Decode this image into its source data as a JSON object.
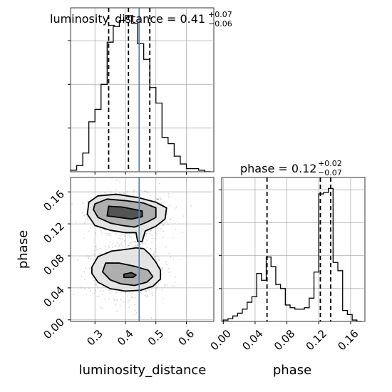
{
  "chart_data": {
    "type": "corner",
    "parameters": [
      "luminosity_distance",
      "phase"
    ],
    "truth": {
      "luminosity_distance": 0.445,
      "phase": null
    },
    "truth_color": "#4682b4",
    "panels": [
      {
        "id": "luminosity_distance_marginal",
        "type": "histogram",
        "title": {
          "prefix": "luminosity_distance = ",
          "value": "0.41",
          "plus": "+0.07",
          "minus": "−0.06"
        },
        "xlim": [
          0.22,
          0.69
        ],
        "xticks": [
          0.3,
          0.4,
          0.5,
          0.6
        ],
        "ylim": [
          0,
          1.05
        ],
        "quantiles": [
          0.345,
          0.41,
          0.48
        ],
        "bins": [
          [
            0.22,
            0.01
          ],
          [
            0.24,
            0.04
          ],
          [
            0.26,
            0.12
          ],
          [
            0.28,
            0.32
          ],
          [
            0.3,
            0.4
          ],
          [
            0.32,
            0.56
          ],
          [
            0.34,
            0.83
          ],
          [
            0.36,
            0.93
          ],
          [
            0.38,
            0.97
          ],
          [
            0.4,
            1.0
          ],
          [
            0.42,
            0.95
          ],
          [
            0.44,
            0.82
          ],
          [
            0.46,
            0.72
          ],
          [
            0.48,
            0.54
          ],
          [
            0.5,
            0.44
          ],
          [
            0.52,
            0.22
          ],
          [
            0.54,
            0.18
          ],
          [
            0.56,
            0.1
          ],
          [
            0.58,
            0.05
          ],
          [
            0.6,
            0.02
          ],
          [
            0.62,
            0.02
          ],
          [
            0.64,
            0.01
          ],
          [
            0.66,
            0.0
          ]
        ]
      },
      {
        "id": "phase_marginal",
        "type": "histogram",
        "title": {
          "prefix": "phase = ",
          "value": "0.12",
          "plus": "+0.02",
          "minus": "−0.07"
        },
        "xlim": [
          -0.002,
          0.178
        ],
        "xticks": [
          0.0,
          0.04,
          0.08,
          0.12,
          0.16
        ],
        "xtick_labels": [
          "0.00",
          "0.04",
          "0.08",
          "0.12",
          "0.16"
        ],
        "xlabel": "phase",
        "ylim": [
          0,
          1.05
        ],
        "quantiles": [
          0.055,
          0.122,
          0.135
        ],
        "bins": [
          [
            0.0,
            0.01
          ],
          [
            0.006,
            0.02
          ],
          [
            0.012,
            0.04
          ],
          [
            0.018,
            0.06
          ],
          [
            0.024,
            0.09
          ],
          [
            0.03,
            0.14
          ],
          [
            0.036,
            0.18
          ],
          [
            0.042,
            0.35
          ],
          [
            0.048,
            0.3
          ],
          [
            0.054,
            0.47
          ],
          [
            0.06,
            0.4
          ],
          [
            0.066,
            0.27
          ],
          [
            0.072,
            0.24
          ],
          [
            0.078,
            0.12
          ],
          [
            0.084,
            0.1
          ],
          [
            0.09,
            0.09
          ],
          [
            0.096,
            0.09
          ],
          [
            0.102,
            0.1
          ],
          [
            0.108,
            0.17
          ],
          [
            0.114,
            0.36
          ],
          [
            0.12,
            0.93
          ],
          [
            0.126,
            0.94
          ],
          [
            0.132,
            0.97
          ],
          [
            0.138,
            0.43
          ],
          [
            0.144,
            0.37
          ],
          [
            0.15,
            0.08
          ],
          [
            0.156,
            0.05
          ],
          [
            0.162,
            0.01
          ],
          [
            0.168,
            0.0
          ]
        ]
      },
      {
        "id": "joint_luminosity_distance_phase",
        "type": "2d_contour",
        "xlim": [
          0.22,
          0.69
        ],
        "ylim": [
          -0.002,
          0.178
        ],
        "xticks": [
          0.3,
          0.4,
          0.5,
          0.6
        ],
        "yticks": [
          0.0,
          0.04,
          0.08,
          0.12,
          0.16
        ],
        "ytick_labels": [
          "0.00",
          "0.04",
          "0.08",
          "0.12",
          "0.16"
        ],
        "xlabel": "luminosity_distance",
        "ylabel": "phase",
        "contours": [
          {
            "level": 0.393,
            "points": [
              [
                0.345,
                0.142
              ],
              [
                0.39,
                0.141
              ],
              [
                0.43,
                0.138
              ],
              [
                0.455,
                0.136
              ],
              [
                0.455,
                0.129
              ],
              [
                0.42,
                0.126
              ],
              [
                0.38,
                0.128
              ],
              [
                0.34,
                0.13
              ]
            ]
          },
          {
            "level": 0.865,
            "points": [
              [
                0.3,
                0.145
              ],
              [
                0.34,
                0.151
              ],
              [
                0.4,
                0.149
              ],
              [
                0.46,
                0.146
              ],
              [
                0.5,
                0.14
              ],
              [
                0.5,
                0.128
              ],
              [
                0.47,
                0.122
              ],
              [
                0.43,
                0.116
              ],
              [
                0.39,
                0.118
              ],
              [
                0.35,
                0.121
              ],
              [
                0.31,
                0.128
              ],
              [
                0.295,
                0.138
              ]
            ]
          },
          {
            "level": 0.989,
            "points": [
              [
                0.28,
                0.147
              ],
              [
                0.31,
                0.155
              ],
              [
                0.37,
                0.157
              ],
              [
                0.44,
                0.153
              ],
              [
                0.5,
                0.147
              ],
              [
                0.535,
                0.14
              ],
              [
                0.53,
                0.126
              ],
              [
                0.5,
                0.117
              ],
              [
                0.465,
                0.111
              ],
              [
                0.455,
                0.098
              ],
              [
                0.44,
                0.098
              ],
              [
                0.435,
                0.109
              ],
              [
                0.4,
                0.109
              ],
              [
                0.35,
                0.112
              ],
              [
                0.3,
                0.118
              ],
              [
                0.275,
                0.132
              ]
            ]
          },
          {
            "level": 0.393,
            "points": [
              [
                0.395,
                0.057
              ],
              [
                0.42,
                0.059
              ],
              [
                0.435,
                0.056
              ],
              [
                0.425,
                0.053
              ],
              [
                0.395,
                0.053
              ]
            ]
          },
          {
            "level": 0.865,
            "points": [
              [
                0.335,
                0.071
              ],
              [
                0.38,
                0.071
              ],
              [
                0.43,
                0.067
              ],
              [
                0.475,
                0.062
              ],
              [
                0.49,
                0.054
              ],
              [
                0.47,
                0.047
              ],
              [
                0.43,
                0.043
              ],
              [
                0.385,
                0.045
              ],
              [
                0.35,
                0.05
              ],
              [
                0.325,
                0.06
              ]
            ]
          },
          {
            "level": 0.989,
            "points": [
              [
                0.29,
                0.066
              ],
              [
                0.31,
                0.079
              ],
              [
                0.355,
                0.086
              ],
              [
                0.4,
                0.088
              ],
              [
                0.435,
                0.09
              ],
              [
                0.46,
                0.089
              ],
              [
                0.48,
                0.082
              ],
              [
                0.5,
                0.072
              ],
              [
                0.515,
                0.062
              ],
              [
                0.515,
                0.051
              ],
              [
                0.49,
                0.042
              ],
              [
                0.45,
                0.037
              ],
              [
                0.4,
                0.036
              ],
              [
                0.35,
                0.039
              ],
              [
                0.31,
                0.047
              ],
              [
                0.29,
                0.058
              ]
            ]
          }
        ]
      }
    ]
  }
}
